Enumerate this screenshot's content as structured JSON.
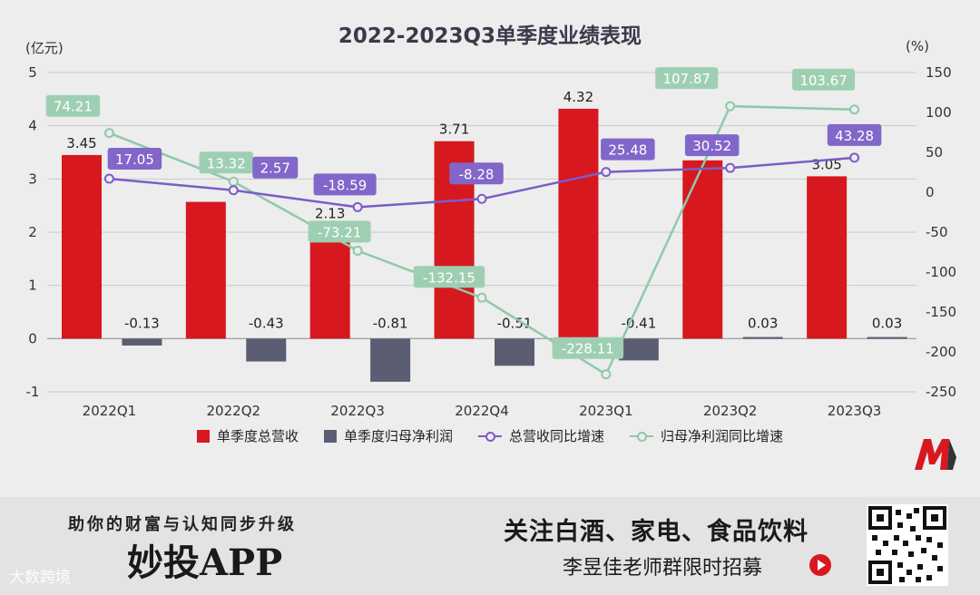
{
  "chart_data": {
    "type": "bar+line",
    "title": "2022-2023Q3单季度业绩表现",
    "categories": [
      "2022Q1",
      "2022Q2",
      "2022Q3",
      "2022Q4",
      "2023Q1",
      "2023Q2",
      "2023Q3"
    ],
    "left_axis": {
      "unit": "(亿元)",
      "range": [
        -1,
        5
      ],
      "ticks": [
        "-1",
        "0",
        "1",
        "2",
        "3",
        "4",
        "5"
      ]
    },
    "right_axis": {
      "unit": "(%)",
      "range": [
        -250,
        150
      ],
      "ticks": [
        "-250",
        "-200",
        "-150",
        "-100",
        "-50",
        "0",
        "50",
        "100",
        "150"
      ]
    },
    "grid": true,
    "legend_position": "bottom",
    "series": [
      {
        "name": "单季度总营收",
        "type": "bar",
        "axis": "left",
        "color": "#d7181f",
        "values": [
          3.45,
          2.57,
          2.13,
          3.71,
          4.32,
          3.35,
          3.05
        ],
        "labels": [
          "3.45",
          "",
          "2.13",
          "3.71",
          "4.32",
          "3.35",
          "3.05"
        ]
      },
      {
        "name": "单季度归母净利润",
        "type": "bar",
        "axis": "left",
        "color": "#5b5d72",
        "values": [
          -0.13,
          -0.43,
          -0.81,
          -0.51,
          -0.41,
          0.03,
          0.03
        ],
        "labels": [
          "-0.13",
          "-0.43",
          "-0.81",
          "-0.51",
          "-0.41",
          "0.03",
          "0.03"
        ]
      },
      {
        "name": "总营收同比增速",
        "type": "line",
        "axis": "right",
        "color": "#7b5cc8",
        "values": [
          17.05,
          2.57,
          -18.59,
          -8.28,
          25.48,
          30.52,
          43.28
        ],
        "labels": [
          "17.05",
          "2.57",
          "-18.59",
          "-8.28",
          "25.48",
          "30.52",
          "43.28"
        ]
      },
      {
        "name": "归母净利润同比增速",
        "type": "line",
        "axis": "right",
        "color": "#8fc9a8",
        "values": [
          74.21,
          13.32,
          -73.21,
          -132.15,
          -228.11,
          107.87,
          103.67
        ],
        "labels": [
          "74.21",
          "13.32",
          "-73.21",
          "-132.15",
          "-228.11",
          "107.87",
          "103.67"
        ]
      }
    ]
  },
  "banner": {
    "slogan": "助你的财富与认知同步升级",
    "app_name": "妙投APP",
    "focus_text": "关注白酒、家电、食品饮料",
    "recruit_text": "李昱佳老师群限时招募",
    "watermark": "大数跨境"
  },
  "icons": {
    "logo": "m-brand-logo-icon",
    "arrow": "arrow-right-circle-icon",
    "qr": "qr-code-icon"
  }
}
